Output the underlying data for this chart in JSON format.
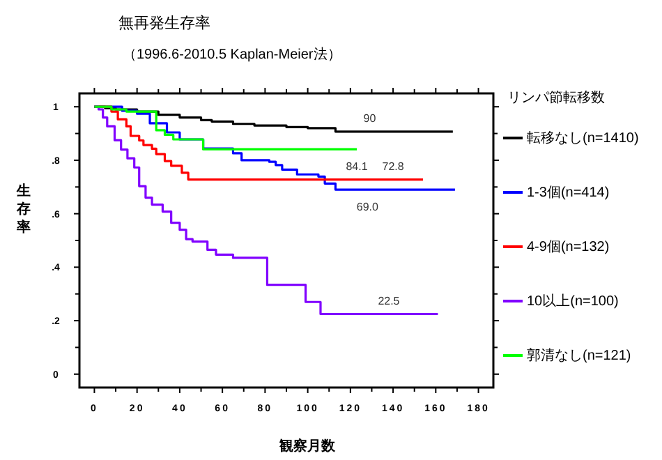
{
  "chart_data": {
    "type": "step",
    "title": "無再発生存率",
    "subtitle": "（1996.6-2010.5 Kaplan-Meier法）",
    "xlabel": "観察月数",
    "ylabel": "生存率",
    "legend_title": "リンパ節転移数",
    "legend": "right",
    "xlim": [
      -7,
      187
    ],
    "ylim": [
      -0.05,
      1.05
    ],
    "xticks": [
      0,
      {
        "value": 10,
        "label": null
      },
      20,
      {
        "value": 30,
        "label": null
      },
      40,
      {
        "value": 50,
        "label": null
      },
      60,
      {
        "value": 70,
        "label": null
      },
      80,
      {
        "value": 90,
        "label": null
      },
      100,
      {
        "value": 110,
        "label": null
      },
      120,
      {
        "value": 130,
        "label": null
      },
      140,
      {
        "value": 150,
        "label": null
      },
      160,
      {
        "value": 170,
        "label": null
      },
      180
    ],
    "yticks": [
      0,
      {
        "value": 0.1,
        "label": null
      },
      {
        "value": 0.2,
        "label": ".2"
      },
      {
        "value": 0.3,
        "label": null
      },
      {
        "value": 0.4,
        "label": ".4"
      },
      {
        "value": 0.5,
        "label": null
      },
      {
        "value": 0.6,
        "label": ".6"
      },
      {
        "value": 0.7,
        "label": null
      },
      {
        "value": 0.8,
        "label": ".8"
      },
      {
        "value": 0.9,
        "label": null
      },
      1
    ],
    "series": [
      {
        "name": "転移なし(n=1410)",
        "color": "#000000",
        "x": [
          0,
          5,
          10,
          20,
          30,
          40,
          50,
          55,
          65,
          75,
          90,
          100,
          113,
          168
        ],
        "values": [
          1,
          0.995,
          0.99,
          0.982,
          0.97,
          0.96,
          0.95,
          0.945,
          0.936,
          0.93,
          0.924,
          0.92,
          0.907,
          0.907
        ]
      },
      {
        "name": "1-3個(n=414)",
        "color": "#0000ff",
        "x": [
          0,
          13,
          20,
          26,
          34,
          40,
          51,
          65,
          69,
          82,
          85,
          88,
          95,
          105,
          108,
          110,
          113,
          169
        ],
        "values": [
          1,
          0.985,
          0.974,
          0.938,
          0.904,
          0.878,
          0.844,
          0.826,
          0.8,
          0.794,
          0.782,
          0.765,
          0.747,
          0.739,
          0.713,
          0.713,
          0.69,
          0.69
        ]
      },
      {
        "name": "4-9個(n=132)",
        "color": "#ff0000",
        "x": [
          0,
          8,
          11,
          15,
          17,
          21,
          23,
          27,
          29,
          33,
          36,
          41,
          44,
          154
        ],
        "values": [
          1,
          0.982,
          0.953,
          0.927,
          0.891,
          0.874,
          0.857,
          0.843,
          0.823,
          0.797,
          0.779,
          0.753,
          0.728,
          0.728
        ]
      },
      {
        "name": "10以上(n=100)",
        "color": "#8000ff",
        "x": [
          0,
          2,
          4,
          6,
          9.5,
          12.5,
          15.5,
          18.7,
          21,
          24,
          27,
          32,
          36,
          40,
          43,
          46,
          53,
          57,
          65,
          81,
          99,
          106,
          161
        ],
        "values": [
          1,
          0.99,
          0.96,
          0.927,
          0.875,
          0.84,
          0.807,
          0.773,
          0.703,
          0.66,
          0.634,
          0.608,
          0.566,
          0.54,
          0.505,
          0.496,
          0.465,
          0.447,
          0.435,
          0.334,
          0.27,
          0.225,
          0.225
        ]
      },
      {
        "name": "郭清なし(n=121)",
        "color": "#00ff00",
        "x": [
          0,
          8,
          15,
          29,
          33,
          37,
          51,
          123
        ],
        "values": [
          1,
          0.99,
          0.982,
          0.912,
          0.895,
          0.878,
          0.841,
          0.841
        ]
      }
    ],
    "annotations": [
      {
        "text": "90",
        "x": 129,
        "y": 0.907
      },
      {
        "text": "84.1",
        "x": 123,
        "y": 0.841
      },
      {
        "text": "72.8",
        "x": 140,
        "y": 0.728
      },
      {
        "text": "69.0",
        "x": 128,
        "y": 0.69
      },
      {
        "text": "22.5",
        "x": 138,
        "y": 0.225
      }
    ]
  }
}
